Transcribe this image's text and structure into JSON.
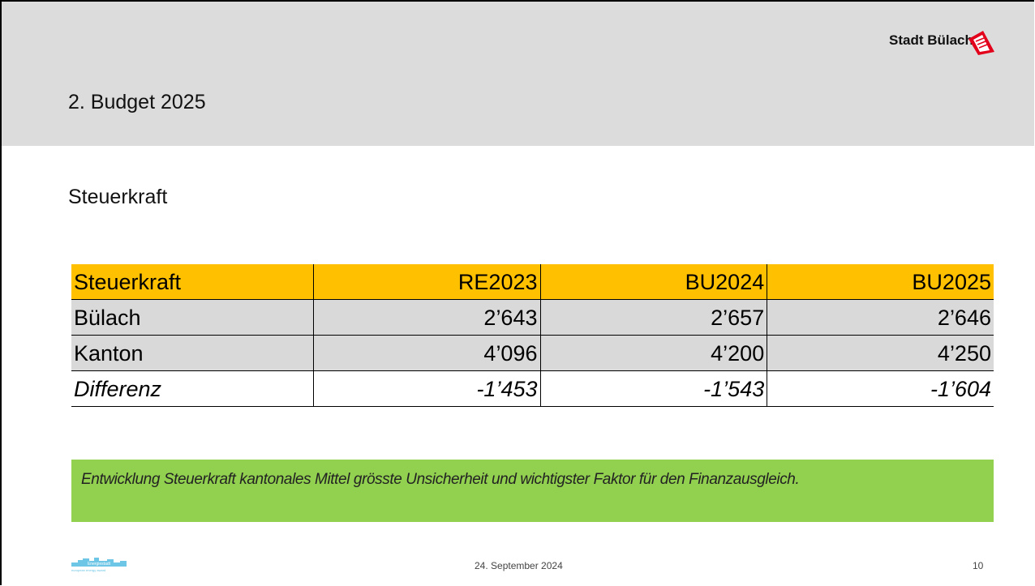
{
  "header": {
    "title": "2. Budget 2025",
    "logo": "Stadt Bülach"
  },
  "subtitle": "Steuerkraft",
  "table": {
    "header": [
      "Steuerkraft",
      "RE2023",
      "BU2024",
      "BU2025"
    ],
    "rows": [
      [
        "Bülach",
        "2’643",
        "2’657",
        "2’646"
      ],
      [
        "Kanton",
        "4’096",
        "4’200",
        "4’250"
      ],
      [
        "Differenz",
        "-1’453",
        "-1’543",
        "-1’604"
      ]
    ]
  },
  "note": "Entwicklung Steuerkraft kantonales Mittel grösste Unsicherheit und wichtigster Faktor für den Finanzausgleich.",
  "footer": {
    "badge": "Energiestadt",
    "badge_sub": "european energy award",
    "date": "24. September 2024",
    "page": "10"
  }
}
